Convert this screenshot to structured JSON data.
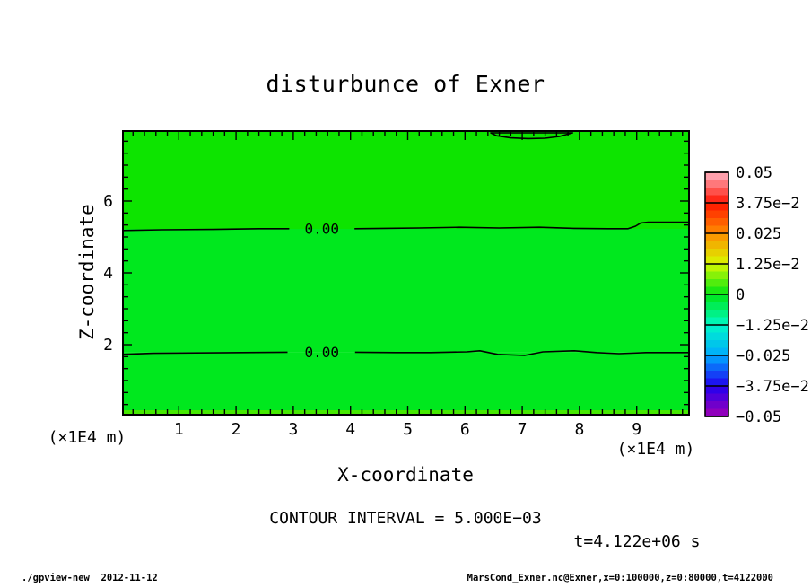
{
  "footer": {
    "left": "./gpview-new  2012-11-12",
    "right": "MarsCond_Exner.nc@Exner,x=0:100000,z=0:80000,t=4122000"
  },
  "chart_data": {
    "type": "contour",
    "title": "disturbunce of Exner",
    "xlabel": "X-coordinate",
    "ylabel": "Z-coordinate",
    "x_unit_label": "(×1E4 m)",
    "y_unit_label": "(×1E4 m)",
    "xlim": [
      0,
      9.9
    ],
    "ylim": [
      0.05,
      7.95
    ],
    "x_major_ticks": [
      1,
      2,
      3,
      4,
      5,
      6,
      7,
      8,
      9
    ],
    "x_minor_step": 0.2,
    "y_major_ticks": [
      2,
      4,
      6
    ],
    "y_minor_step": 0.3333,
    "grid": false,
    "contour_interval_label": "CONTOUR INTERVAL = 5.000E−03",
    "time_label": "t=4.122e+06 s",
    "fill_bands": [
      {
        "from_z": 5.225,
        "to_z": 7.95,
        "color": "#0de400"
      },
      {
        "from_z": 1.79,
        "to_z": 5.225,
        "color": "#00e81e"
      },
      {
        "from_z": 0.175,
        "to_z": 1.79,
        "color": "#00e81e"
      },
      {
        "from_z": 0.05,
        "to_z": 0.175,
        "color": "#46e800"
      }
    ],
    "contours": [
      {
        "label": "0.00",
        "level": 0.0,
        "label_x": 3.5,
        "label_z": 5.225,
        "closed": false,
        "segments": [
          [
            [
              0.02,
              5.18
            ],
            [
              0.7,
              5.2
            ],
            [
              1.6,
              5.21
            ],
            [
              2.4,
              5.23
            ],
            [
              2.93,
              5.23
            ]
          ],
          [
            [
              4.07,
              5.23
            ],
            [
              4.6,
              5.24
            ],
            [
              5.2,
              5.25
            ],
            [
              5.9,
              5.27
            ],
            [
              6.6,
              5.25
            ],
            [
              7.3,
              5.27
            ],
            [
              7.9,
              5.24
            ],
            [
              8.5,
              5.23
            ],
            [
              8.85,
              5.23
            ],
            [
              8.98,
              5.3
            ],
            [
              9.07,
              5.39
            ],
            [
              9.2,
              5.41
            ],
            [
              9.55,
              5.41
            ],
            [
              9.91,
              5.41
            ]
          ]
        ]
      },
      {
        "label": "0.00",
        "level": 0.0,
        "label_x": 3.5,
        "label_z": 1.79,
        "closed": false,
        "segments": [
          [
            [
              0.02,
              1.73
            ],
            [
              0.55,
              1.76
            ],
            [
              1.3,
              1.77
            ],
            [
              2.1,
              1.78
            ],
            [
              2.9,
              1.79
            ]
          ],
          [
            [
              4.08,
              1.79
            ],
            [
              4.8,
              1.78
            ],
            [
              5.4,
              1.78
            ],
            [
              6.03,
              1.8
            ],
            [
              6.26,
              1.83
            ],
            [
              6.57,
              1.73
            ],
            [
              7.04,
              1.7
            ],
            [
              7.36,
              1.8
            ],
            [
              7.91,
              1.83
            ],
            [
              8.3,
              1.78
            ],
            [
              8.69,
              1.75
            ],
            [
              9.16,
              1.78
            ],
            [
              9.91,
              1.78
            ]
          ]
        ]
      },
      {
        "label": null,
        "level": 0.0,
        "closed": true,
        "segments": [
          [
            [
              6.45,
              7.9
            ],
            [
              6.55,
              7.82
            ],
            [
              6.8,
              7.76
            ],
            [
              7.1,
              7.74
            ],
            [
              7.4,
              7.75
            ],
            [
              7.65,
              7.8
            ],
            [
              7.88,
              7.9
            ]
          ]
        ]
      }
    ],
    "colorbar": {
      "position": "right",
      "labels": [
        "0.05",
        "3.75e−2",
        "0.025",
        "1.25e−2",
        "0",
        "−1.25e−2",
        "−0.025",
        "−3.75e−2",
        "−0.05"
      ],
      "boundary_colors": [
        "#ffb4c4",
        "#ff1400",
        "#ff8c00",
        "#d8f800",
        "#00e614",
        "#00f8c8",
        "#00aaff",
        "#2000f0",
        "#a000b4"
      ]
    }
  }
}
